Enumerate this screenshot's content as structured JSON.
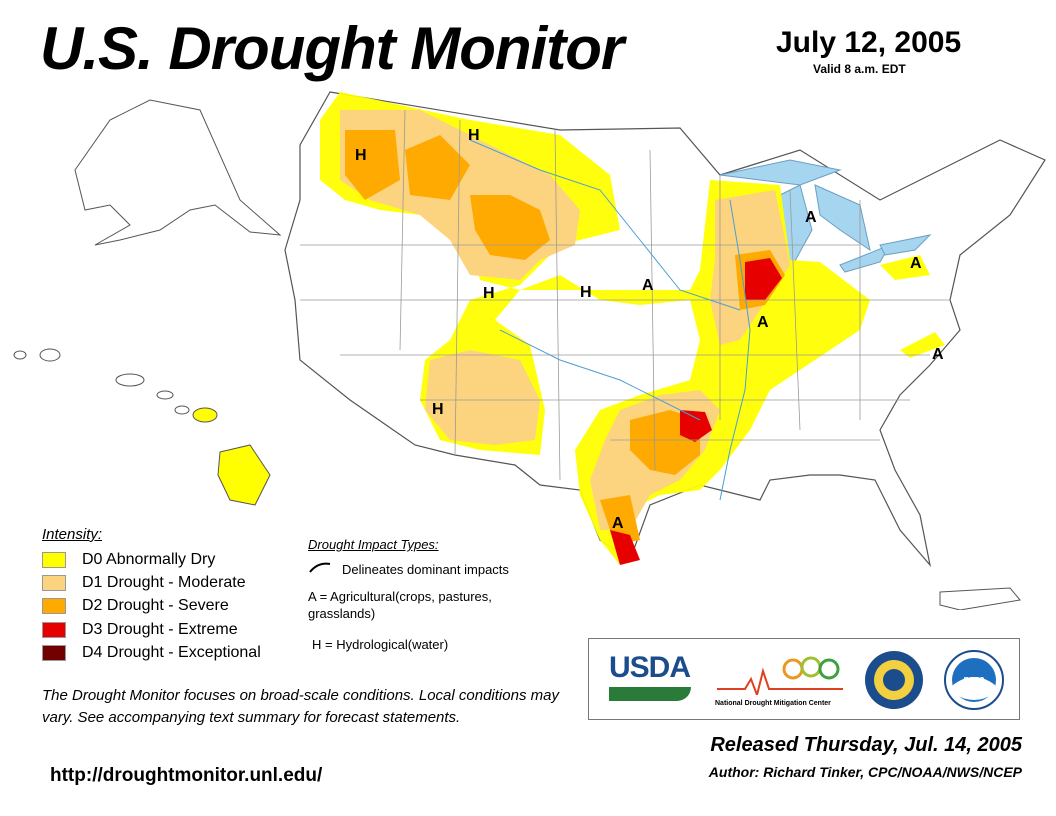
{
  "header": {
    "title": "U.S. Drought Monitor",
    "date": "July 12, 2005",
    "valid": "Valid 8 a.m. EDT"
  },
  "colors": {
    "d0": "#ffff00",
    "d1": "#fcd37f",
    "d2": "#ffaa00",
    "d3": "#e60000",
    "d4": "#730000",
    "water": "#a6d5f0",
    "border": "#808080"
  },
  "legend": {
    "title": "Intensity:",
    "items": [
      {
        "code": "D0",
        "label": "D0 Abnormally Dry",
        "color": "#ffff00"
      },
      {
        "code": "D1",
        "label": "D1 Drought - Moderate",
        "color": "#fcd37f"
      },
      {
        "code": "D2",
        "label": "D2 Drought - Severe",
        "color": "#ffaa00"
      },
      {
        "code": "D3",
        "label": "D3 Drought - Extreme",
        "color": "#e60000"
      },
      {
        "code": "D4",
        "label": "D4 Drought - Exceptional",
        "color": "#730000"
      }
    ]
  },
  "impacts": {
    "title": "Drought Impact Types:",
    "delineates": "Delineates dominant impacts",
    "agricultural": "A = Agricultural(crops, pastures, grasslands)",
    "hydrological": "H = Hydrological(water)"
  },
  "map_labels": {
    "h": "H",
    "a": "A"
  },
  "note": "The Drought Monitor focuses on broad-scale conditions. Local conditions may vary. See accompanying text summary for forecast statements.",
  "url": "http://droughtmonitor.unl.edu/",
  "logos": {
    "usda": "USDA",
    "ndmc_prefix": "National",
    "ndmc": "Drought Mitigation Center",
    "noaa": "noaa"
  },
  "released": "Released Thursday, Jul. 14, 2005",
  "author": "Author: Richard Tinker, CPC/NOAA/NWS/NCEP"
}
